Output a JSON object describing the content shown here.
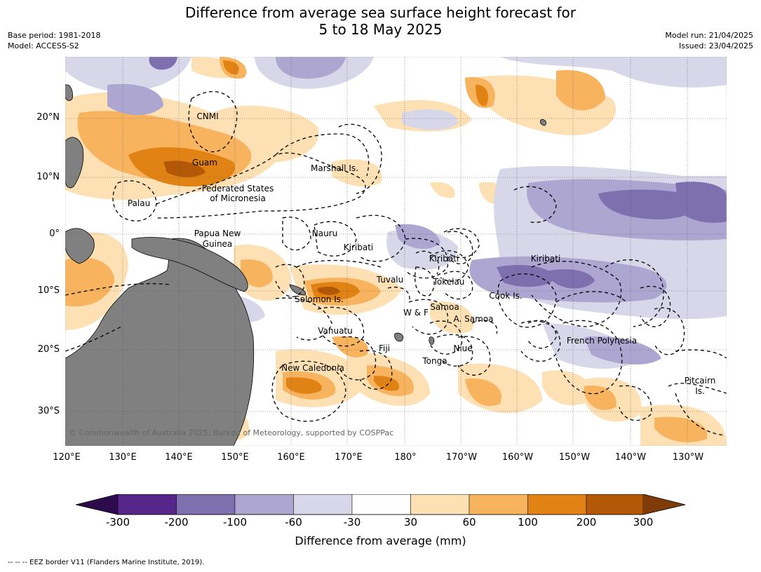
{
  "title": "Difference from average sea surface height forecast for",
  "title_line2": "5 to 18 May 2025",
  "base_period": "Base period: 1981-2018",
  "model": "Model: ACCESS-S2",
  "model_run": "Model run: 21/04/2025",
  "issued": "Issued: 23/04/2025",
  "lat_labels": [
    "20°N",
    "10°N",
    "0°",
    "10°S",
    "20°S",
    "30°S"
  ],
  "lon_labels": [
    "120°E",
    "130°E",
    "140°E",
    "150°E",
    "160°E",
    "170°E",
    "180°",
    "170°W",
    "160°W",
    "150°W",
    "140°W",
    "130°W"
  ],
  "regions": [
    "CNMI",
    "Guam",
    "Marshall Is.",
    "Federated States",
    "of Micronesia",
    "Palau",
    "Nauru",
    "Papua New",
    "Guinea",
    "Kiribati",
    "Kiribati",
    "Kiribati",
    "Tuvalu",
    "Tokelau",
    "Solomon Is.",
    "Cook Is.",
    "Samoa",
    "W & F",
    "A. Samoa",
    "Vanuatu",
    "Fiji",
    "Niue",
    "Tonga",
    "French Polynesia",
    "New Caledonia",
    "Pitcairn",
    "Is."
  ],
  "copyright": "© Commonwealth of Australia 2025, Bureau of Meteorology, supported by COSPPac",
  "colorbar": {
    "labels": [
      "-300",
      "-200",
      "-100",
      "-60",
      "-30",
      "30",
      "60",
      "100",
      "200",
      "300"
    ],
    "colors": [
      "#2d0a4b",
      "#57268a",
      "#7e6fae",
      "#aca6d0",
      "#d8d7ea",
      "#ffffff",
      "#fde0b4",
      "#f8b35e",
      "#e08214",
      "#b35806",
      "#7f3b08"
    ],
    "title": "Difference from average (mm)"
  },
  "footnote": "--  --  -- EEZ border V11 (Flanders Marine Institute, 2019)."
}
